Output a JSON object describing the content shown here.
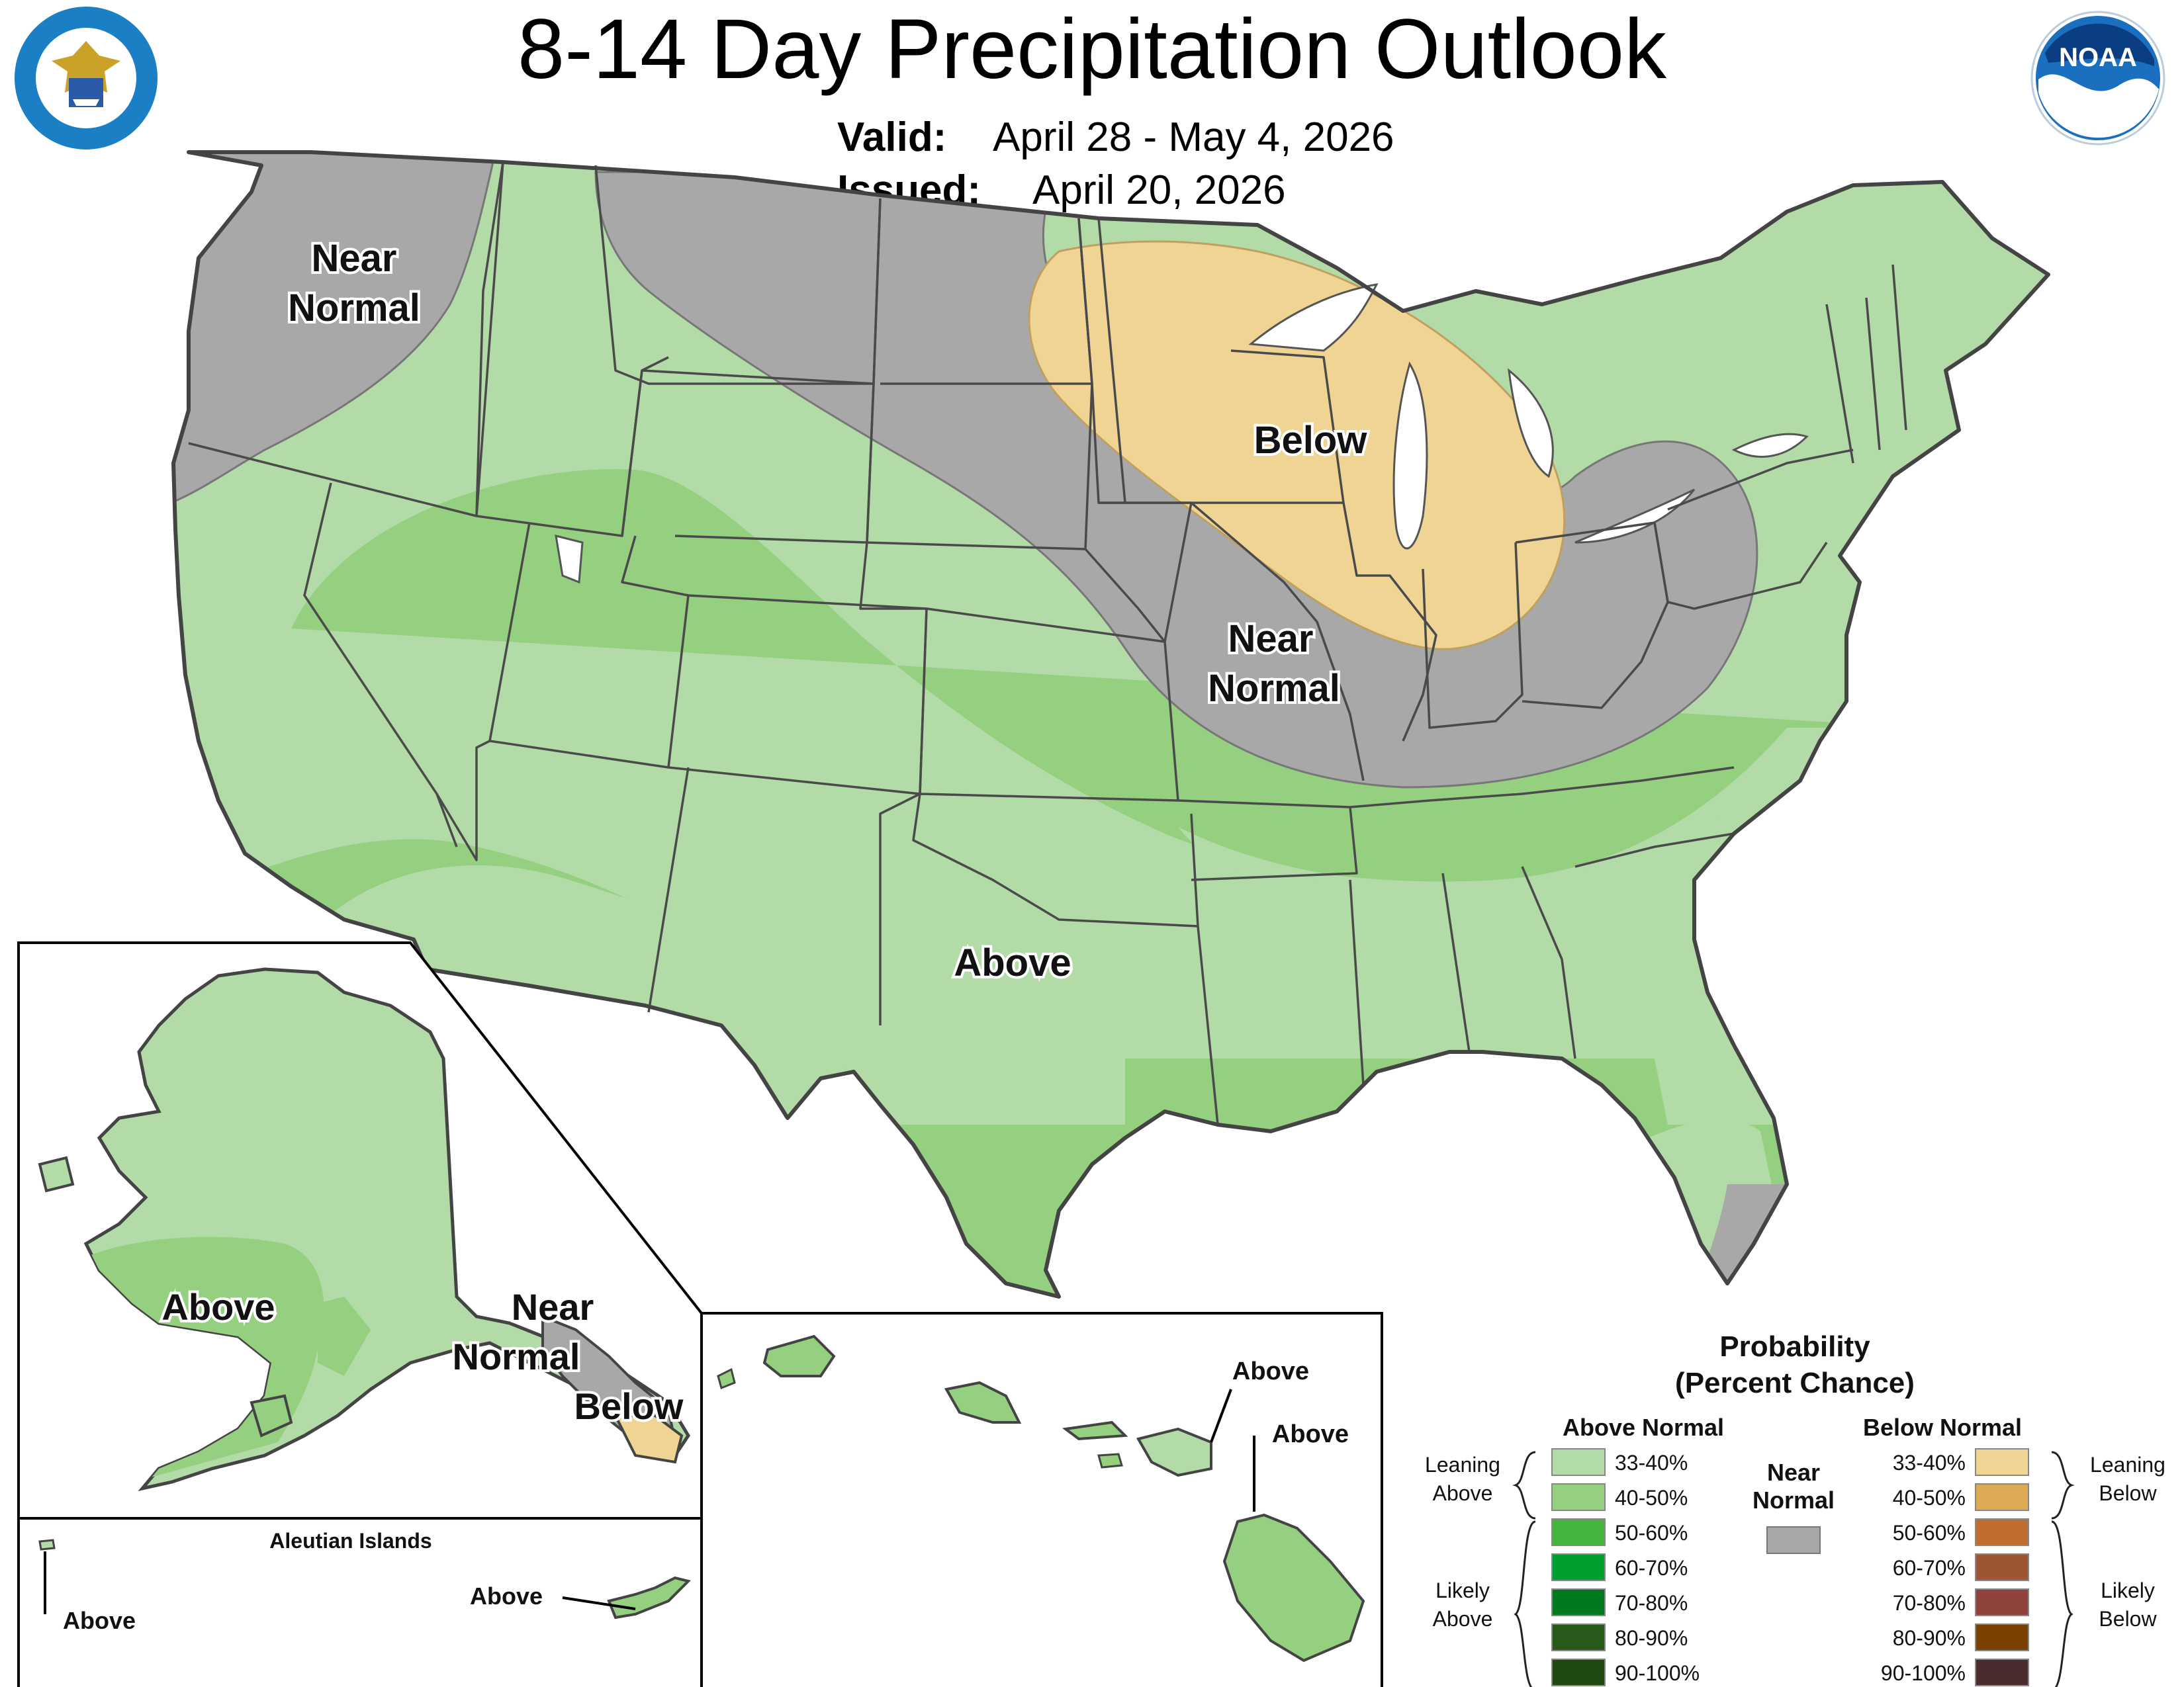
{
  "title": "8-14 Day Precipitation Outlook",
  "valid_label": "Valid:",
  "valid_value": "April 28 - May 4, 2026",
  "issued_label": "Issued:",
  "issued_value": "April 20, 2026",
  "logos": {
    "left": "department-of-commerce-seal",
    "left_ring_text": "DEPARTMENT OF COMMERCE · UNITED STATES OF AMERICA",
    "right": "noaa-logo",
    "right_text": "NOAA"
  },
  "regions": {
    "near_normal_nw": [
      "Near",
      "Normal"
    ],
    "below_mw": "Below",
    "near_normal_mw": [
      "Near",
      "Normal"
    ],
    "above_s": "Above"
  },
  "alaska": {
    "above": "Above",
    "near_normal": [
      "Near",
      "Normal"
    ],
    "below": "Below",
    "aleutian_title": "Aleutian Islands",
    "aleutian_above_left": "Above",
    "aleutian_above_right": "Above"
  },
  "hawaii": {
    "above_1": "Above",
    "above_2": "Above"
  },
  "legend": {
    "title_1": "Probability",
    "title_2": "(Percent Chance)",
    "above_header": "Above Normal",
    "below_header": "Below Normal",
    "near_label_1": "Near",
    "near_label_2": "Normal",
    "leaning_above": [
      "Leaning",
      "Above"
    ],
    "likely_above": [
      "Likely",
      "Above"
    ],
    "leaning_below": [
      "Leaning",
      "Below"
    ],
    "likely_below": [
      "Likely",
      "Below"
    ],
    "above_rows": [
      {
        "range": "33-40%",
        "color": "#b3dba8"
      },
      {
        "range": "40-50%",
        "color": "#94d07f"
      },
      {
        "range": "50-60%",
        "color": "#44b43c"
      },
      {
        "range": "60-70%",
        "color": "#00a030"
      },
      {
        "range": "70-80%",
        "color": "#00781e"
      },
      {
        "range": "80-90%",
        "color": "#285a19"
      },
      {
        "range": "90-100%",
        "color": "#1e4a10"
      }
    ],
    "below_rows": [
      {
        "range": "33-40%",
        "color": "#f0d494"
      },
      {
        "range": "40-50%",
        "color": "#dcaa52"
      },
      {
        "range": "50-60%",
        "color": "#c06d32"
      },
      {
        "range": "60-70%",
        "color": "#9e5534"
      },
      {
        "range": "70-80%",
        "color": "#90423c"
      },
      {
        "range": "80-90%",
        "color": "#7a4200"
      },
      {
        "range": "90-100%",
        "color": "#4a2c2c"
      }
    ],
    "near_color": "#a8a8a8"
  }
}
